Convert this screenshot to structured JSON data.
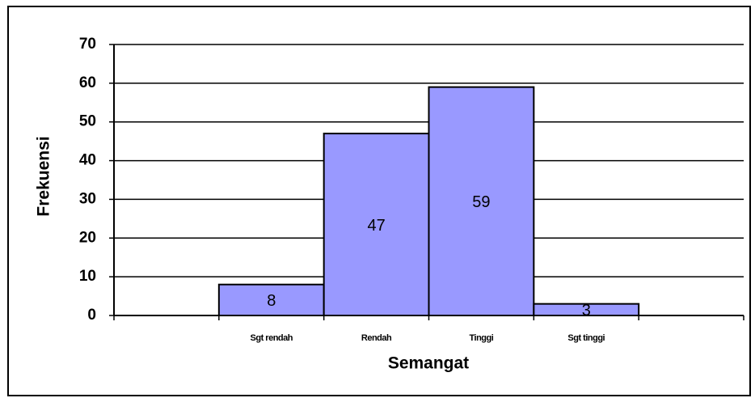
{
  "chart_data": {
    "type": "bar",
    "x_label": "Semangat",
    "y_label": "Frekuensi",
    "categories": [
      null,
      "Sgt rendah",
      "Rendah",
      "Tinggi",
      "Sgt tinggi",
      null
    ],
    "values": [
      null,
      8,
      47,
      59,
      3,
      null
    ],
    "color": "#9999ff",
    "ylim": [
      0,
      70
    ],
    "yticks": [
      0,
      10,
      20,
      30,
      40,
      50,
      60,
      70
    ],
    "grid": true,
    "data_labels": true
  }
}
